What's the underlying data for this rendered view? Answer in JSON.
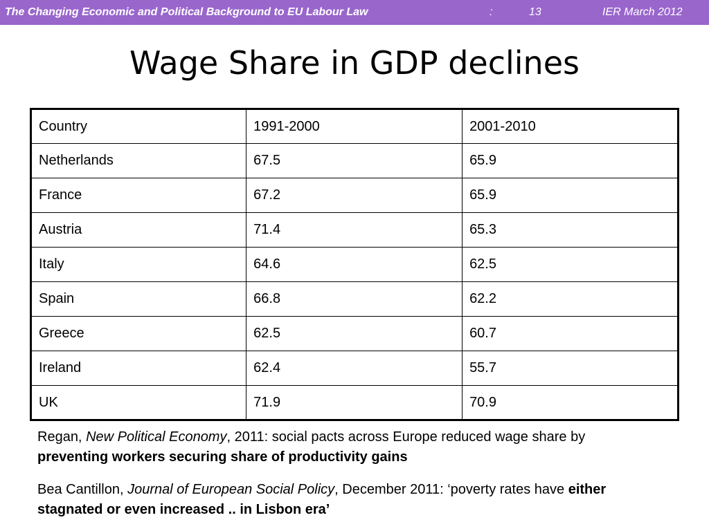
{
  "header": {
    "title": "The Changing Economic and Political Background to EU Labour Law",
    "colon": ":",
    "page_number": "13",
    "date_label": "IER March 2012",
    "bar_color": "#9966cc"
  },
  "slide": {
    "title": "Wage Share in GDP declines"
  },
  "table": {
    "columns": [
      "Country",
      "1991-2000",
      "2001-2010"
    ],
    "rows": [
      {
        "country": "Netherlands",
        "p1": "67.5",
        "p2": "65.9"
      },
      {
        "country": "France",
        "p1": "67.2",
        "p2": "65.9"
      },
      {
        "country": "Austria",
        "p1": "71.4",
        "p2": "65.3"
      },
      {
        "country": "Italy",
        "p1": "64.6",
        "p2": "62.5"
      },
      {
        "country": "Spain",
        "p1": "66.8",
        "p2": "62.2"
      },
      {
        "country": "Greece",
        "p1": "62.5",
        "p2": "60.7"
      },
      {
        "country": "Ireland",
        "p1": "62.4",
        "p2": "55.7"
      },
      {
        "country": "UK",
        "p1": "71.9",
        "p2": "70.9"
      }
    ]
  },
  "notes": [
    {
      "author": "Regan, ",
      "publication": "New Political Economy",
      "text": ", 2011: social pacts across Europe reduced wage share by ",
      "emphasis": "preventing workers securing share of productivity gains"
    },
    {
      "author": "Bea Cantillon, ",
      "publication": "Journal of European Social Policy",
      "text": ", December 2011: ‘poverty rates have ",
      "emphasis": "either stagnated or even increased .. in Lisbon era’"
    }
  ]
}
